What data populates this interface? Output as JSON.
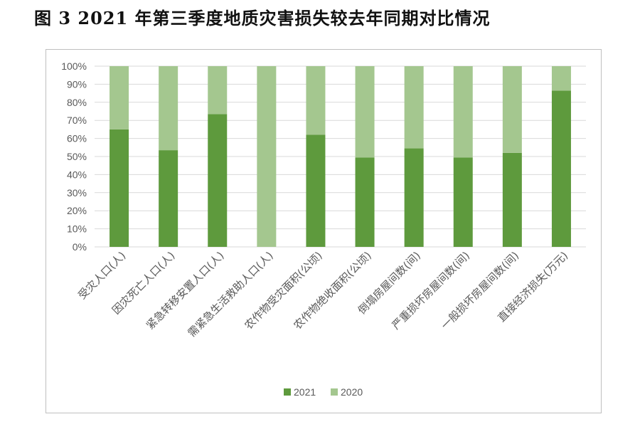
{
  "figure": {
    "title": "图 3   2021 年第三季度地质灾害损失较去年同期对比情况"
  },
  "chart_data": {
    "type": "bar",
    "stacked": "percent",
    "categories": [
      "受灾人口(人)",
      "因灾死亡人口(人)",
      "紧急转移安置人口(人)",
      "需紧急生活救助人口(人)",
      "农作物受灾面积(公顷)",
      "农作物绝收面积(公顷)",
      "倒塌房屋间数(间)",
      "严重损坏房屋间数(间)",
      "一般损坏房屋间数(间)",
      "直接经济损失(万元)"
    ],
    "series": [
      {
        "name": "2021",
        "color": "#5e9a3d",
        "values": [
          65,
          53.5,
          73.5,
          0,
          62,
          49.5,
          54.5,
          49.5,
          52,
          86.5
        ]
      },
      {
        "name": "2020",
        "color": "#a4c78f",
        "values": [
          35,
          46.5,
          26.5,
          100,
          38,
          50.5,
          45.5,
          50.5,
          48,
          13.5
        ]
      }
    ],
    "y_ticks": [
      "0%",
      "10%",
      "20%",
      "30%",
      "40%",
      "50%",
      "60%",
      "70%",
      "80%",
      "90%",
      "100%"
    ],
    "ylim": [
      0,
      100
    ],
    "grid": true,
    "legend_position": "bottom",
    "xlabel": "",
    "ylabel": ""
  }
}
